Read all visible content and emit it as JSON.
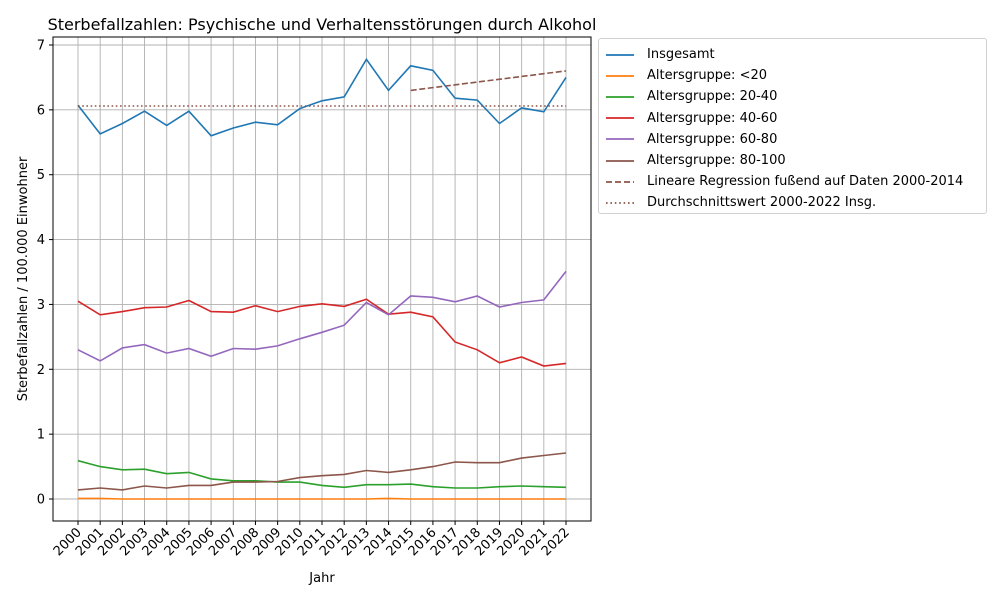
{
  "chart_data": {
    "type": "line",
    "title": "Sterbefallzahlen: Psychische und Verhaltensstörungen durch Alkohol",
    "xlabel": "Jahr",
    "ylabel": "Sterbefallzahlen / 100.000 Einwohner",
    "ylim": [
      -0.33,
      7.1
    ],
    "xlim": [
      1999,
      2023.1
    ],
    "yticks": [
      0,
      1,
      2,
      3,
      4,
      5,
      6,
      7
    ],
    "grid": true,
    "legend_position": "outside upper right",
    "x": [
      2000,
      2001,
      2002,
      2003,
      2004,
      2005,
      2006,
      2007,
      2008,
      2009,
      2010,
      2011,
      2012,
      2013,
      2014,
      2015,
      2016,
      2017,
      2018,
      2019,
      2020,
      2021,
      2022
    ],
    "categories": [
      "2000",
      "2001",
      "2002",
      "2003",
      "2004",
      "2005",
      "2006",
      "2007",
      "2008",
      "2009",
      "2010",
      "2011",
      "2012",
      "2013",
      "2014",
      "2015",
      "2016",
      "2017",
      "2018",
      "2019",
      "2020",
      "2021",
      "2022"
    ],
    "series": [
      {
        "name": "Insgesamt",
        "color": "#1f77b4",
        "style": "solid",
        "values": [
          6.07,
          5.63,
          5.79,
          5.98,
          5.76,
          5.98,
          5.6,
          5.72,
          5.81,
          5.77,
          6.02,
          6.14,
          6.2,
          6.78,
          6.3,
          6.68,
          6.61,
          6.18,
          6.15,
          5.79,
          6.03,
          5.97,
          6.5
        ]
      },
      {
        "name": "Altersgruppe: <20",
        "color": "#ff7f0e",
        "style": "solid",
        "values": [
          0.01,
          0.01,
          0.0,
          0.0,
          0.0,
          0.0,
          0.0,
          0.0,
          0.0,
          0.0,
          0.0,
          0.0,
          0.0,
          0.0,
          0.01,
          0.0,
          0.0,
          0.0,
          0.0,
          0.0,
          0.0,
          0.0,
          0.0
        ]
      },
      {
        "name": "Altersgruppe: 20-40",
        "color": "#2ca02c",
        "style": "solid",
        "values": [
          0.59,
          0.5,
          0.45,
          0.46,
          0.39,
          0.41,
          0.31,
          0.28,
          0.28,
          0.26,
          0.26,
          0.21,
          0.18,
          0.22,
          0.22,
          0.23,
          0.19,
          0.17,
          0.17,
          0.19,
          0.2,
          0.19,
          0.18
        ]
      },
      {
        "name": "Altersgruppe: 40-60",
        "color": "#d62728",
        "style": "solid",
        "values": [
          3.05,
          2.84,
          2.89,
          2.95,
          2.96,
          3.06,
          2.89,
          2.88,
          2.98,
          2.89,
          2.97,
          3.01,
          2.97,
          3.08,
          2.85,
          2.88,
          2.81,
          2.42,
          2.3,
          2.1,
          2.19,
          2.05,
          2.09
        ]
      },
      {
        "name": "Altersgruppe: 60-80",
        "color": "#9467bd",
        "style": "solid",
        "values": [
          2.3,
          2.13,
          2.33,
          2.38,
          2.25,
          2.32,
          2.2,
          2.32,
          2.31,
          2.36,
          2.47,
          2.57,
          2.68,
          3.03,
          2.84,
          3.13,
          3.11,
          3.04,
          3.13,
          2.96,
          3.03,
          3.07,
          3.51
        ]
      },
      {
        "name": "Altersgruppe: 80-100",
        "color": "#8c564b",
        "style": "solid",
        "values": [
          0.14,
          0.17,
          0.14,
          0.2,
          0.17,
          0.21,
          0.21,
          0.26,
          0.26,
          0.27,
          0.33,
          0.36,
          0.38,
          0.44,
          0.41,
          0.45,
          0.5,
          0.57,
          0.56,
          0.56,
          0.63,
          0.67,
          0.71
        ]
      },
      {
        "name": "Lineare Regression fußend auf Daten 2000-2014",
        "color": "#8c564b",
        "style": "dashed",
        "x": [
          2015,
          2022
        ],
        "values": [
          6.3,
          6.6
        ]
      },
      {
        "name": "Durchschnittswert 2000-2022 Insg.",
        "color": "#8c564b",
        "style": "dotted",
        "x": [
          2000,
          2022
        ],
        "values": [
          6.06,
          6.06
        ]
      }
    ]
  }
}
